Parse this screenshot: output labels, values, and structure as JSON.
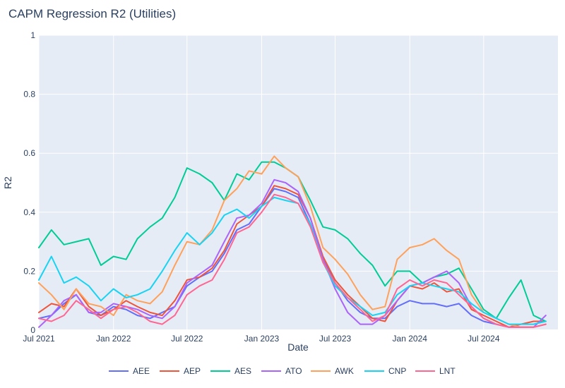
{
  "chart_data": {
    "type": "line",
    "title": "CAPM Regression R2 (Utilities)",
    "xlabel": "Date",
    "ylabel": "R2",
    "x_axis": {
      "type": "date",
      "range": [
        "2021-07-01",
        "2024-12-31"
      ],
      "tick_values": [
        "2021-07-01",
        "2022-01-01",
        "2022-07-01",
        "2023-01-01",
        "2023-07-01",
        "2024-01-01",
        "2024-07-01"
      ],
      "tick_labels": [
        "Jul 2021",
        "Jan 2022",
        "Jul 2022",
        "Jan 2023",
        "Jul 2023",
        "Jan 2024",
        "Jul 2024"
      ]
    },
    "y_axis": {
      "range": [
        0,
        1
      ],
      "tick_values": [
        0,
        0.2,
        0.4,
        0.6,
        0.8,
        1
      ],
      "tick_labels": [
        "0",
        "0.2",
        "0.4",
        "0.6",
        "0.8",
        "1"
      ]
    },
    "grid": true,
    "legend_position": "bottom",
    "x": [
      "2021-07-01",
      "2021-08-01",
      "2021-09-01",
      "2021-10-01",
      "2021-11-01",
      "2021-12-01",
      "2022-01-01",
      "2022-02-01",
      "2022-03-01",
      "2022-04-01",
      "2022-05-01",
      "2022-06-01",
      "2022-07-01",
      "2022-08-01",
      "2022-09-01",
      "2022-10-01",
      "2022-11-01",
      "2022-12-01",
      "2023-01-01",
      "2023-02-01",
      "2023-03-01",
      "2023-04-01",
      "2023-05-01",
      "2023-06-01",
      "2023-07-01",
      "2023-08-01",
      "2023-09-01",
      "2023-10-01",
      "2023-11-01",
      "2023-12-01",
      "2024-01-01",
      "2024-02-01",
      "2024-03-01",
      "2024-04-01",
      "2024-05-01",
      "2024-06-01",
      "2024-07-01",
      "2024-08-01",
      "2024-09-01",
      "2024-10-01",
      "2024-11-01",
      "2024-12-01"
    ],
    "series": [
      {
        "name": "AEE",
        "color": "#636efa",
        "values": [
          0.04,
          0.05,
          0.09,
          0.12,
          0.06,
          0.05,
          0.08,
          0.07,
          0.05,
          0.04,
          0.06,
          0.08,
          0.15,
          0.18,
          0.2,
          0.26,
          0.34,
          0.36,
          0.42,
          0.48,
          0.47,
          0.45,
          0.36,
          0.24,
          0.16,
          0.1,
          0.06,
          0.04,
          0.04,
          0.08,
          0.1,
          0.09,
          0.09,
          0.08,
          0.09,
          0.05,
          0.03,
          0.02,
          0.01,
          0.01,
          0.01,
          0.02
        ]
      },
      {
        "name": "AEP",
        "color": "#EF553B",
        "values": [
          0.06,
          0.09,
          0.08,
          0.14,
          0.08,
          0.05,
          0.07,
          0.1,
          0.08,
          0.06,
          0.05,
          0.1,
          0.17,
          0.18,
          0.21,
          0.27,
          0.36,
          0.39,
          0.42,
          0.49,
          0.48,
          0.46,
          0.38,
          0.25,
          0.17,
          0.12,
          0.08,
          0.04,
          0.03,
          0.1,
          0.15,
          0.14,
          0.16,
          0.13,
          0.14,
          0.07,
          0.05,
          0.03,
          0.01,
          0.02,
          0.03,
          0.03
        ]
      },
      {
        "name": "AES",
        "color": "#00cc96",
        "values": [
          0.28,
          0.34,
          0.29,
          0.3,
          0.31,
          0.22,
          0.25,
          0.24,
          0.31,
          0.35,
          0.38,
          0.45,
          0.55,
          0.53,
          0.5,
          0.44,
          0.53,
          0.51,
          0.57,
          0.57,
          0.55,
          0.52,
          0.44,
          0.35,
          0.34,
          0.31,
          0.26,
          0.22,
          0.15,
          0.2,
          0.2,
          0.16,
          0.18,
          0.19,
          0.21,
          0.14,
          0.07,
          0.04,
          0.11,
          0.17,
          0.05,
          0.03
        ]
      },
      {
        "name": "ATO",
        "color": "#ab63fa",
        "values": [
          0.01,
          0.05,
          0.1,
          0.12,
          0.06,
          0.06,
          0.09,
          0.08,
          0.07,
          0.05,
          0.04,
          0.08,
          0.16,
          0.19,
          0.22,
          0.3,
          0.38,
          0.39,
          0.43,
          0.51,
          0.5,
          0.47,
          0.38,
          0.24,
          0.14,
          0.06,
          0.02,
          0.02,
          0.05,
          0.1,
          0.15,
          0.16,
          0.18,
          0.2,
          0.16,
          0.08,
          0.04,
          0.02,
          0.01,
          0.01,
          0.01,
          0.05
        ]
      },
      {
        "name": "AWK",
        "color": "#FFA15A",
        "values": [
          0.16,
          0.12,
          0.07,
          0.14,
          0.09,
          0.08,
          0.05,
          0.12,
          0.1,
          0.09,
          0.13,
          0.22,
          0.3,
          0.29,
          0.34,
          0.44,
          0.48,
          0.54,
          0.53,
          0.59,
          0.55,
          0.52,
          0.42,
          0.28,
          0.24,
          0.19,
          0.12,
          0.07,
          0.08,
          0.24,
          0.28,
          0.29,
          0.31,
          0.27,
          0.24,
          0.12,
          0.06,
          0.04,
          0.02,
          0.01,
          0.01,
          0.02
        ]
      },
      {
        "name": "CNP",
        "color": "#19d3f3",
        "values": [
          0.17,
          0.25,
          0.16,
          0.18,
          0.15,
          0.1,
          0.14,
          0.11,
          0.12,
          0.14,
          0.2,
          0.27,
          0.33,
          0.29,
          0.33,
          0.39,
          0.41,
          0.38,
          0.42,
          0.45,
          0.44,
          0.43,
          0.36,
          0.23,
          0.15,
          0.11,
          0.08,
          0.05,
          0.06,
          0.12,
          0.15,
          0.16,
          0.15,
          0.14,
          0.13,
          0.09,
          0.06,
          0.04,
          0.02,
          0.02,
          0.02,
          0.03
        ]
      },
      {
        "name": "LNT",
        "color": "#FF6692",
        "values": [
          0.04,
          0.03,
          0.05,
          0.1,
          0.07,
          0.04,
          0.07,
          0.08,
          0.06,
          0.03,
          0.02,
          0.05,
          0.12,
          0.15,
          0.17,
          0.24,
          0.33,
          0.35,
          0.4,
          0.46,
          0.45,
          0.43,
          0.35,
          0.23,
          0.16,
          0.11,
          0.07,
          0.03,
          0.05,
          0.14,
          0.17,
          0.15,
          0.17,
          0.16,
          0.12,
          0.08,
          0.04,
          0.02,
          0.01,
          0.01,
          0.01,
          0.02
        ]
      }
    ]
  }
}
